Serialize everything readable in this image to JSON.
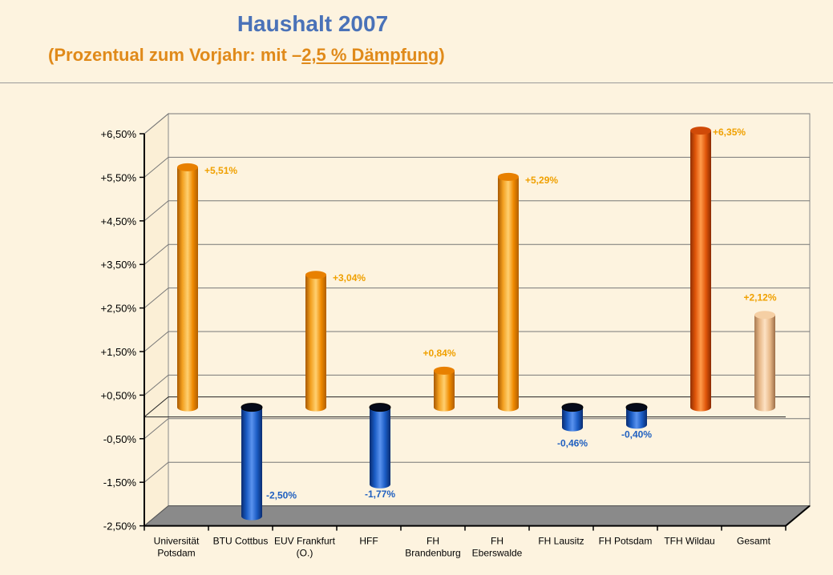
{
  "header": {
    "title": "Haushalt 2007",
    "subtitle_open": "(",
    "subtitle_part1": "Prozentual zum Vorjahr:  mit –",
    "subtitle_underlined": "2,5 % Dämpfung",
    "subtitle_close": ")"
  },
  "chart_data": {
    "type": "bar",
    "title": "Haushalt 2007",
    "categories": [
      [
        "Universität",
        "Potsdam"
      ],
      [
        "BTU Cottbus"
      ],
      [
        "EUV Frankfurt",
        "(O.)"
      ],
      [
        "HFF"
      ],
      [
        "FH",
        "Brandenburg"
      ],
      [
        "FH",
        "Eberswalde"
      ],
      [
        "FH Lausitz"
      ],
      [
        "FH Potsdam"
      ],
      [
        "TFH Wildau"
      ],
      [
        "Gesamt"
      ]
    ],
    "values": [
      5.51,
      -2.5,
      3.04,
      -1.77,
      0.84,
      5.29,
      -0.46,
      -0.4,
      6.35,
      2.12
    ],
    "value_labels": [
      "+5,51%",
      "-2,50%",
      "+3,04%",
      "-1,77%",
      "+0,84%",
      "+5,29%",
      "-0,46%",
      "-0,40%",
      "+6,35%",
      "+2,12%"
    ],
    "yticks": [
      "+6,50%",
      "+5,50%",
      "+4,50%",
      "+3,50%",
      "+2,50%",
      "+1,50%",
      "+0,50%",
      "-0,50%",
      "-1,50%",
      "-2,50%"
    ],
    "ytick_values": [
      6.5,
      5.5,
      4.5,
      3.5,
      2.5,
      1.5,
      0.5,
      -0.5,
      -1.5,
      -2.5
    ],
    "ylim": [
      -2.5,
      6.5
    ],
    "grid": true,
    "colors": {
      "positive": "#f08a00",
      "negative": "#1a5cc4",
      "highlight": "#e0560a",
      "total": "#f0c496",
      "positive_label": "#f0a000",
      "negative_label": "#2060c0"
    },
    "bar_styles": [
      "positive",
      "negative",
      "positive",
      "negative",
      "positive",
      "positive",
      "negative",
      "negative",
      "highlight",
      "total"
    ]
  }
}
